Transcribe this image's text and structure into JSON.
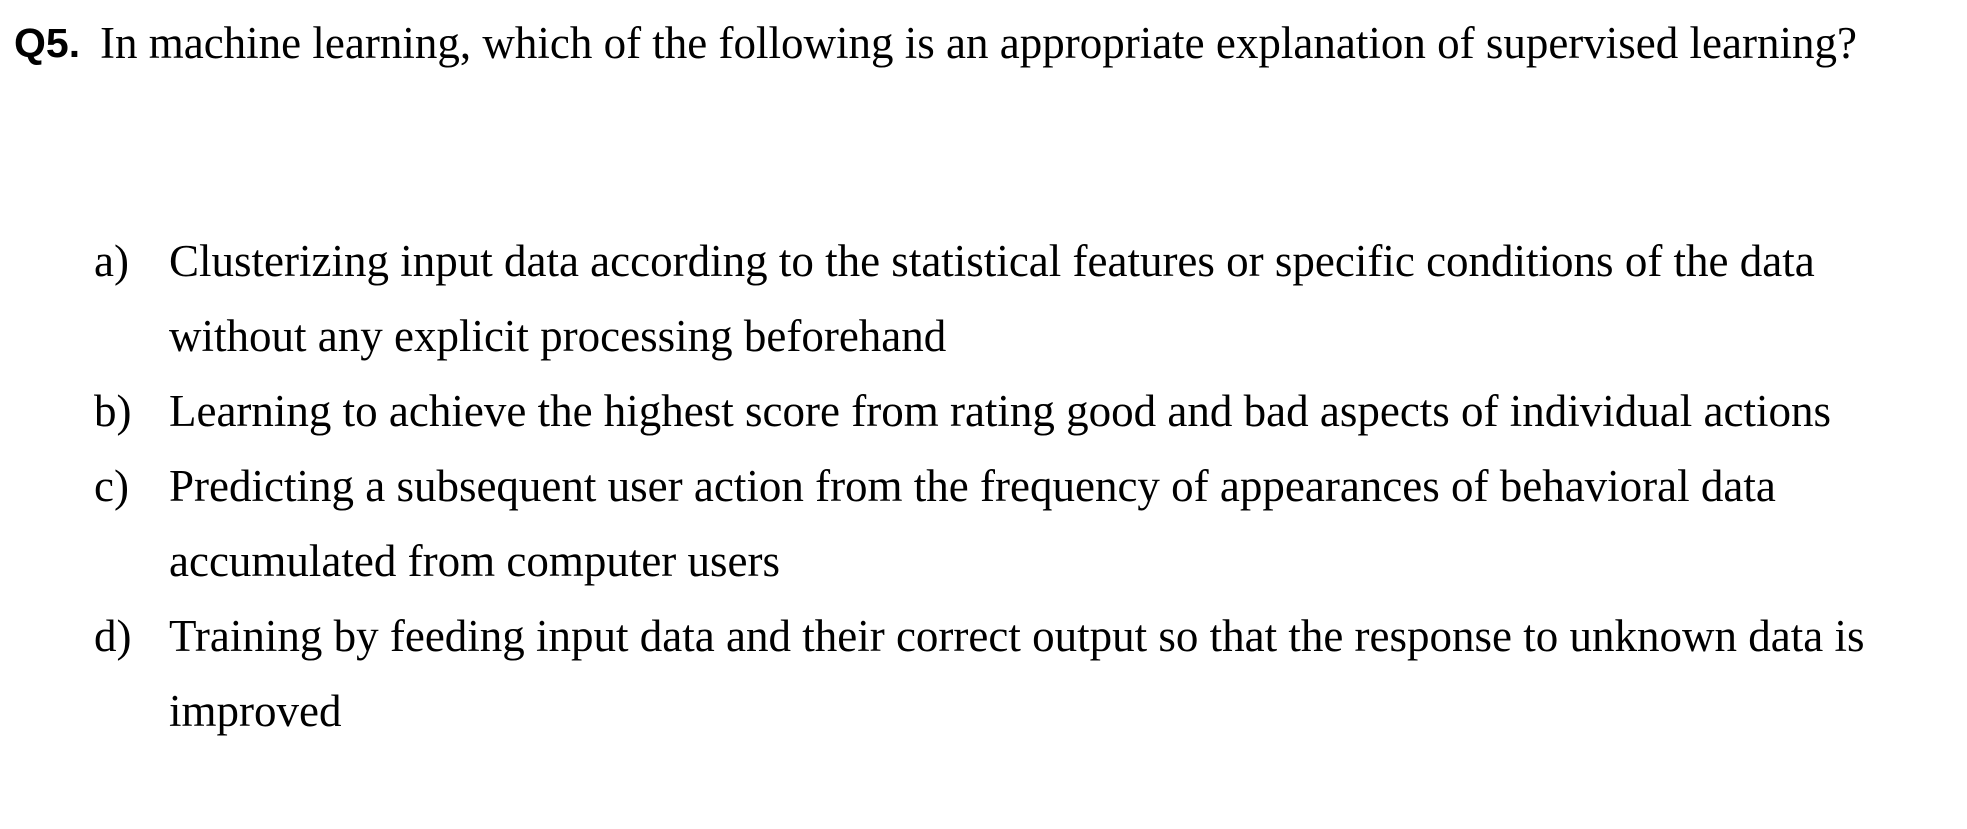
{
  "question": {
    "number": "Q5.",
    "text": "In machine learning, which of the following is an appropriate explanation of supervised learning?"
  },
  "options": [
    {
      "letter": "a)",
      "text": "Clusterizing input data according to the statistical features or specific conditions of the data without any explicit processing beforehand"
    },
    {
      "letter": "b)",
      "text": "Learning to achieve the highest score from rating good and bad aspects of individual actions"
    },
    {
      "letter": "c)",
      "text": "Predicting a subsequent user action from the frequency of appearances of behavioral data accumulated from computer users"
    },
    {
      "letter": "d)",
      "text": "Training by feeding input data and their correct output so that the response to unknown data is improved"
    }
  ]
}
